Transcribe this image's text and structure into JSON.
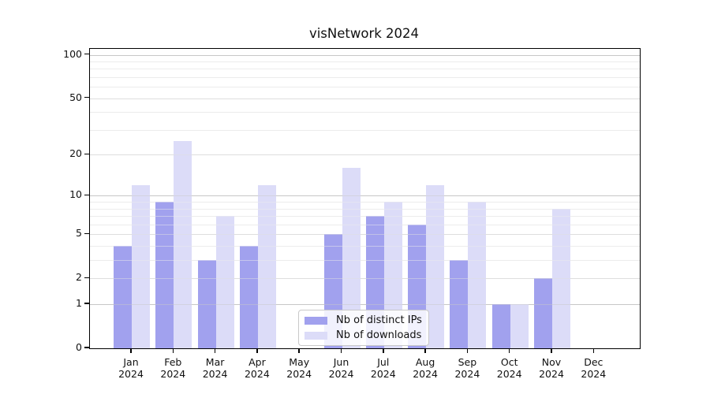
{
  "chart_data": {
    "type": "bar",
    "title": "visNetwork 2024",
    "categories": [
      "Jan",
      "Feb",
      "Mar",
      "Apr",
      "May",
      "Jun",
      "Jul",
      "Aug",
      "Sep",
      "Oct",
      "Nov",
      "Dec"
    ],
    "category_year": "2024",
    "series": [
      {
        "name": "Nb of distinct IPs",
        "color": "#a1a1ee",
        "values": [
          4,
          9,
          3,
          4,
          0,
          5,
          7,
          6,
          3,
          1,
          2,
          0
        ]
      },
      {
        "name": "Nb of downloads",
        "color": "#dcdcf8",
        "values": [
          12,
          25,
          7,
          12,
          0,
          16,
          9,
          12,
          9,
          1,
          8,
          0
        ]
      }
    ],
    "y_axis": {
      "scale": "log1p",
      "major_ticks": [
        0,
        1,
        2,
        5,
        10,
        20,
        50,
        100
      ],
      "minor_ticks": [
        3,
        4,
        6,
        7,
        8,
        9,
        30,
        40,
        60,
        70,
        80,
        90
      ],
      "ylim": [
        0,
        113
      ],
      "grid": true
    },
    "legend": {
      "entries": [
        "Nb of distinct IPs",
        "Nb of downloads"
      ],
      "position": "bottom-center"
    },
    "colors": {
      "decade_gridline": "#c7c7c7",
      "mid_gridline": "#dedede",
      "minor_gridline": "#ececec",
      "axis": "#000000",
      "text": "#111111"
    }
  }
}
